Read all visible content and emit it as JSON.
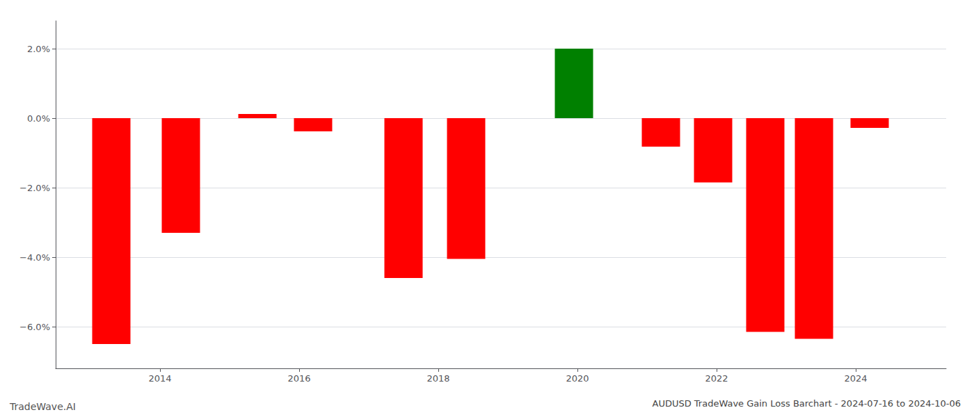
{
  "chart_data": {
    "type": "bar",
    "title": "AUDUSD TradeWave Gain Loss Barchart - 2024-07-16 to 2024-10-06",
    "annotations": [
      "TradeWave.AI"
    ],
    "x": [
      2013.3,
      2014.3,
      2015.4,
      2016.2,
      2017.5,
      2018.4,
      2019.95,
      2021.2,
      2021.95,
      2022.7,
      2023.4,
      2024.2
    ],
    "values": [
      -6.5,
      -3.3,
      0.12,
      -0.38,
      -4.6,
      -4.05,
      2.0,
      -0.82,
      -1.85,
      -6.15,
      -6.35,
      -0.28
    ],
    "colors": [
      "#ff0000",
      "#ff0000",
      "#ff0000",
      "#ff0000",
      "#ff0000",
      "#ff0000",
      "#008000",
      "#ff0000",
      "#ff0000",
      "#ff0000",
      "#ff0000",
      "#ff0000"
    ],
    "xlim": [
      2012.5,
      2025.3
    ],
    "xticks": [
      2014,
      2016,
      2018,
      2020,
      2022,
      2024
    ],
    "ylim": [
      -7.2,
      2.8
    ],
    "yticks": [
      {
        "value": -6.0,
        "label": "−6.0%"
      },
      {
        "value": -4.0,
        "label": "−4.0%"
      },
      {
        "value": -2.0,
        "label": "−2.0%"
      },
      {
        "value": 0.0,
        "label": "0.0%"
      },
      {
        "value": 2.0,
        "label": "2.0%"
      }
    ],
    "grid": true
  }
}
